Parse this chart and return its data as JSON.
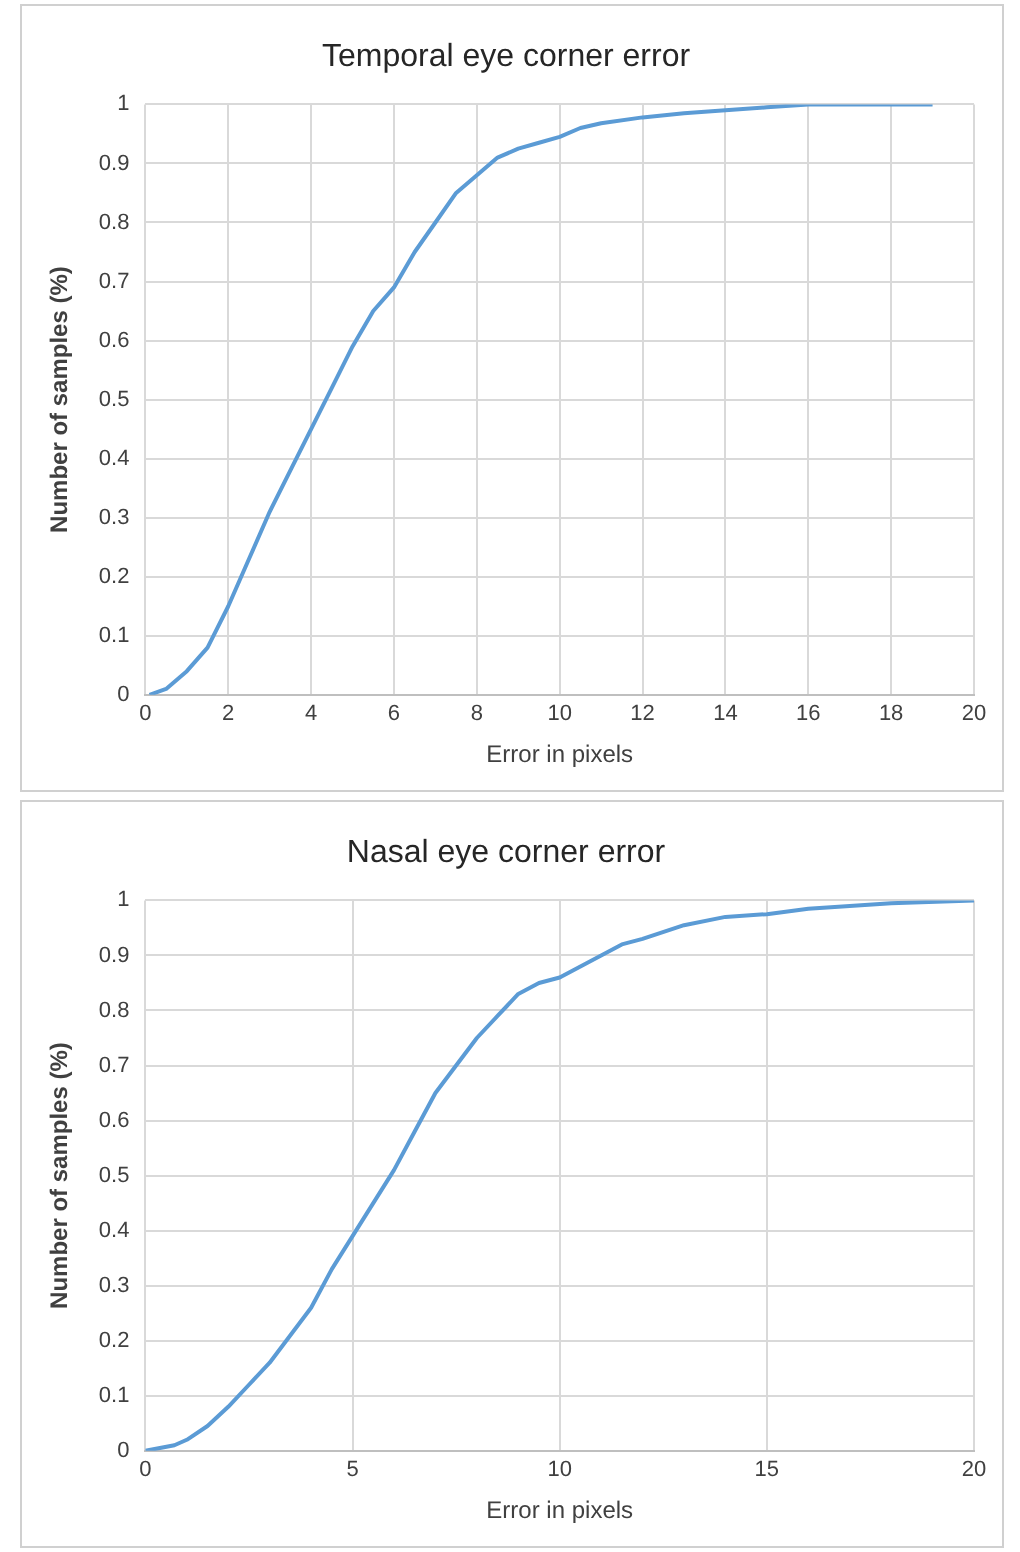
{
  "chart_data": [
    {
      "type": "line",
      "title": "Temporal eye corner error",
      "xlabel": "Error in pixels",
      "ylabel": "Number of samples (%)",
      "xlim": [
        0,
        20
      ],
      "xticks": [
        0,
        2,
        4,
        6,
        8,
        10,
        12,
        14,
        16,
        18,
        20
      ],
      "ylim": [
        0,
        1
      ],
      "yticks": [
        0,
        0.1,
        0.2,
        0.3,
        0.4,
        0.5,
        0.6,
        0.7,
        0.8,
        0.9,
        1
      ],
      "grid": true,
      "legend": false,
      "marker": "none",
      "line_style": "solid",
      "series": [
        {
          "color": "#5b9bd5",
          "x": [
            0.1,
            0.5,
            1,
            1.5,
            2,
            2.5,
            3,
            3.5,
            4,
            4.5,
            5,
            5.5,
            6,
            6.5,
            7,
            7.5,
            8,
            8.5,
            9,
            9.5,
            10,
            10.5,
            11,
            12,
            13,
            14,
            15,
            16,
            19
          ],
          "values": [
            0,
            0.01,
            0.04,
            0.08,
            0.15,
            0.23,
            0.31,
            0.38,
            0.45,
            0.52,
            0.59,
            0.65,
            0.69,
            0.75,
            0.8,
            0.85,
            0.88,
            0.91,
            0.925,
            0.935,
            0.945,
            0.96,
            0.968,
            0.978,
            0.985,
            0.99,
            0.995,
            1,
            1
          ]
        }
      ]
    },
    {
      "type": "line",
      "title": "Nasal eye corner error",
      "xlabel": "Error in pixels",
      "ylabel": "Number of samples (%)",
      "xlim": [
        0,
        20
      ],
      "xticks": [
        0,
        5,
        10,
        15,
        20
      ],
      "ylim": [
        0,
        1
      ],
      "yticks": [
        0,
        0.1,
        0.2,
        0.3,
        0.4,
        0.5,
        0.6,
        0.7,
        0.8,
        0.9,
        1
      ],
      "grid": true,
      "legend": false,
      "marker": "none",
      "line_style": "solid",
      "series": [
        {
          "color": "#5b9bd5",
          "x": [
            0,
            0.7,
            1,
            1.5,
            2,
            2.5,
            3,
            3.5,
            4,
            4.5,
            5,
            5.5,
            6,
            6.5,
            7,
            7.5,
            8,
            8.5,
            9,
            9.5,
            10,
            10.5,
            11,
            11.5,
            12,
            13,
            14,
            15,
            16,
            17,
            18,
            20
          ],
          "values": [
            0,
            0.01,
            0.02,
            0.045,
            0.08,
            0.12,
            0.16,
            0.21,
            0.26,
            0.33,
            0.39,
            0.45,
            0.51,
            0.58,
            0.65,
            0.7,
            0.75,
            0.79,
            0.83,
            0.85,
            0.86,
            0.88,
            0.9,
            0.92,
            0.93,
            0.955,
            0.97,
            0.975,
            0.985,
            0.99,
            0.995,
            1
          ]
        }
      ]
    }
  ]
}
